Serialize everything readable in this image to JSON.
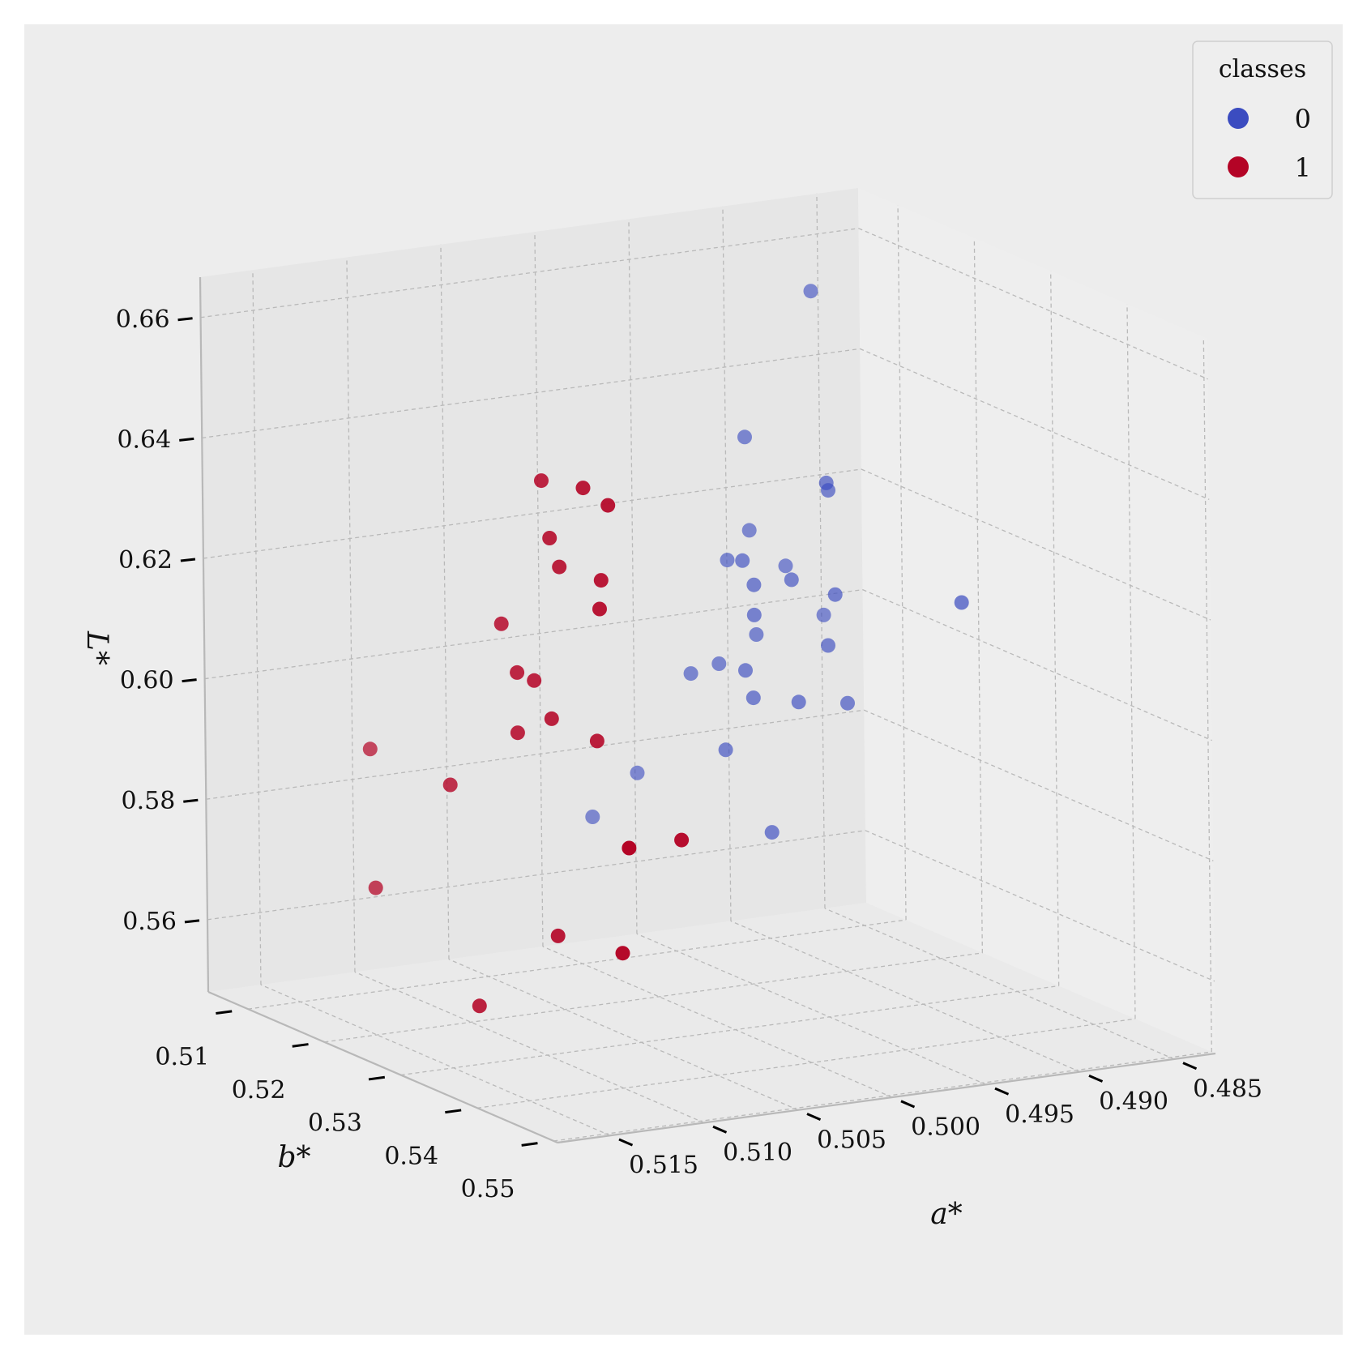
{
  "chart_data": {
    "type": "scatter",
    "projection": "3d",
    "xlabel": "a*",
    "ylabel": "b*",
    "zlabel": "L*",
    "xticks": [
      "0.485",
      "0.490",
      "0.495",
      "0.500",
      "0.505",
      "0.510",
      "0.515"
    ],
    "yticks": [
      "0.51",
      "0.52",
      "0.53",
      "0.54",
      "0.55"
    ],
    "zticks": [
      "0.56",
      "0.58",
      "0.60",
      "0.62",
      "0.64",
      "0.66"
    ],
    "grid": true,
    "legend": {
      "title": "classes",
      "placement": "top-right",
      "entries": [
        {
          "label": "0",
          "color": "#3b4cc0"
        },
        {
          "label": "1",
          "color": "#b40426"
        }
      ]
    },
    "series": [
      {
        "name": "0",
        "color": "#3b4cc0",
        "points": [
          {
            "a": 0.4895,
            "b": 0.515,
            "L": 0.658
          },
          {
            "a": 0.4935,
            "b": 0.516,
            "L": 0.636
          },
          {
            "a": 0.49,
            "b": 0.518,
            "L": 0.628
          },
          {
            "a": 0.4895,
            "b": 0.517,
            "L": 0.626
          },
          {
            "a": 0.4925,
            "b": 0.514,
            "L": 0.619
          },
          {
            "a": 0.4945,
            "b": 0.518,
            "L": 0.617
          },
          {
            "a": 0.4945,
            "b": 0.516,
            "L": 0.616
          },
          {
            "a": 0.4935,
            "b": 0.517,
            "L": 0.612
          },
          {
            "a": 0.4915,
            "b": 0.517,
            "L": 0.612
          },
          {
            "a": 0.491,
            "b": 0.515,
            "L": 0.613
          },
          {
            "a": 0.49,
            "b": 0.519,
            "L": 0.61
          },
          {
            "a": 0.4935,
            "b": 0.517,
            "L": 0.607
          },
          {
            "a": 0.4845,
            "b": 0.522,
            "L": 0.608
          },
          {
            "a": 0.493,
            "b": 0.516,
            "L": 0.603
          },
          {
            "a": 0.489,
            "b": 0.515,
            "L": 0.604
          },
          {
            "a": 0.49,
            "b": 0.518,
            "L": 0.601
          },
          {
            "a": 0.495,
            "b": 0.516,
            "L": 0.599
          },
          {
            "a": 0.494,
            "b": 0.517,
            "L": 0.598
          },
          {
            "a": 0.4965,
            "b": 0.516,
            "L": 0.598
          },
          {
            "a": 0.494,
            "b": 0.518,
            "L": 0.594
          },
          {
            "a": 0.492,
            "b": 0.519,
            "L": 0.593
          },
          {
            "a": 0.489,
            "b": 0.518,
            "L": 0.591
          },
          {
            "a": 0.4955,
            "b": 0.518,
            "L": 0.586
          },
          {
            "a": 0.499,
            "b": 0.515,
            "L": 0.582
          },
          {
            "a": 0.501,
            "b": 0.514,
            "L": 0.575
          },
          {
            "a": 0.4935,
            "b": 0.519,
            "L": 0.572
          }
        ]
      },
      {
        "name": "1",
        "color": "#b40426",
        "points": [
          {
            "a": 0.512,
            "b": 0.535,
            "L": 0.647
          },
          {
            "a": 0.511,
            "b": 0.538,
            "L": 0.647
          },
          {
            "a": 0.5105,
            "b": 0.54,
            "L": 0.645
          },
          {
            "a": 0.512,
            "b": 0.536,
            "L": 0.638
          },
          {
            "a": 0.5115,
            "b": 0.536,
            "L": 0.633
          },
          {
            "a": 0.5105,
            "b": 0.539,
            "L": 0.632
          },
          {
            "a": 0.511,
            "b": 0.54,
            "L": 0.628
          },
          {
            "a": 0.513,
            "b": 0.532,
            "L": 0.622
          },
          {
            "a": 0.513,
            "b": 0.534,
            "L": 0.615
          },
          {
            "a": 0.5125,
            "b": 0.535,
            "L": 0.614
          },
          {
            "a": 0.512,
            "b": 0.536,
            "L": 0.608
          },
          {
            "a": 0.513,
            "b": 0.534,
            "L": 0.605
          },
          {
            "a": 0.51,
            "b": 0.537,
            "L": 0.604
          },
          {
            "a": 0.516,
            "b": 0.522,
            "L": 0.597
          },
          {
            "a": 0.512,
            "b": 0.546,
            "L": 0.592
          },
          {
            "a": 0.515,
            "b": 0.53,
            "L": 0.595
          },
          {
            "a": 0.508,
            "b": 0.543,
            "L": 0.59
          },
          {
            "a": 0.517,
            "b": 0.525,
            "L": 0.576
          },
          {
            "a": 0.513,
            "b": 0.539,
            "L": 0.574
          },
          {
            "a": 0.512,
            "b": 0.545,
            "L": 0.574
          },
          {
            "a": 0.516,
            "b": 0.536,
            "L": 0.562
          }
        ]
      }
    ]
  }
}
